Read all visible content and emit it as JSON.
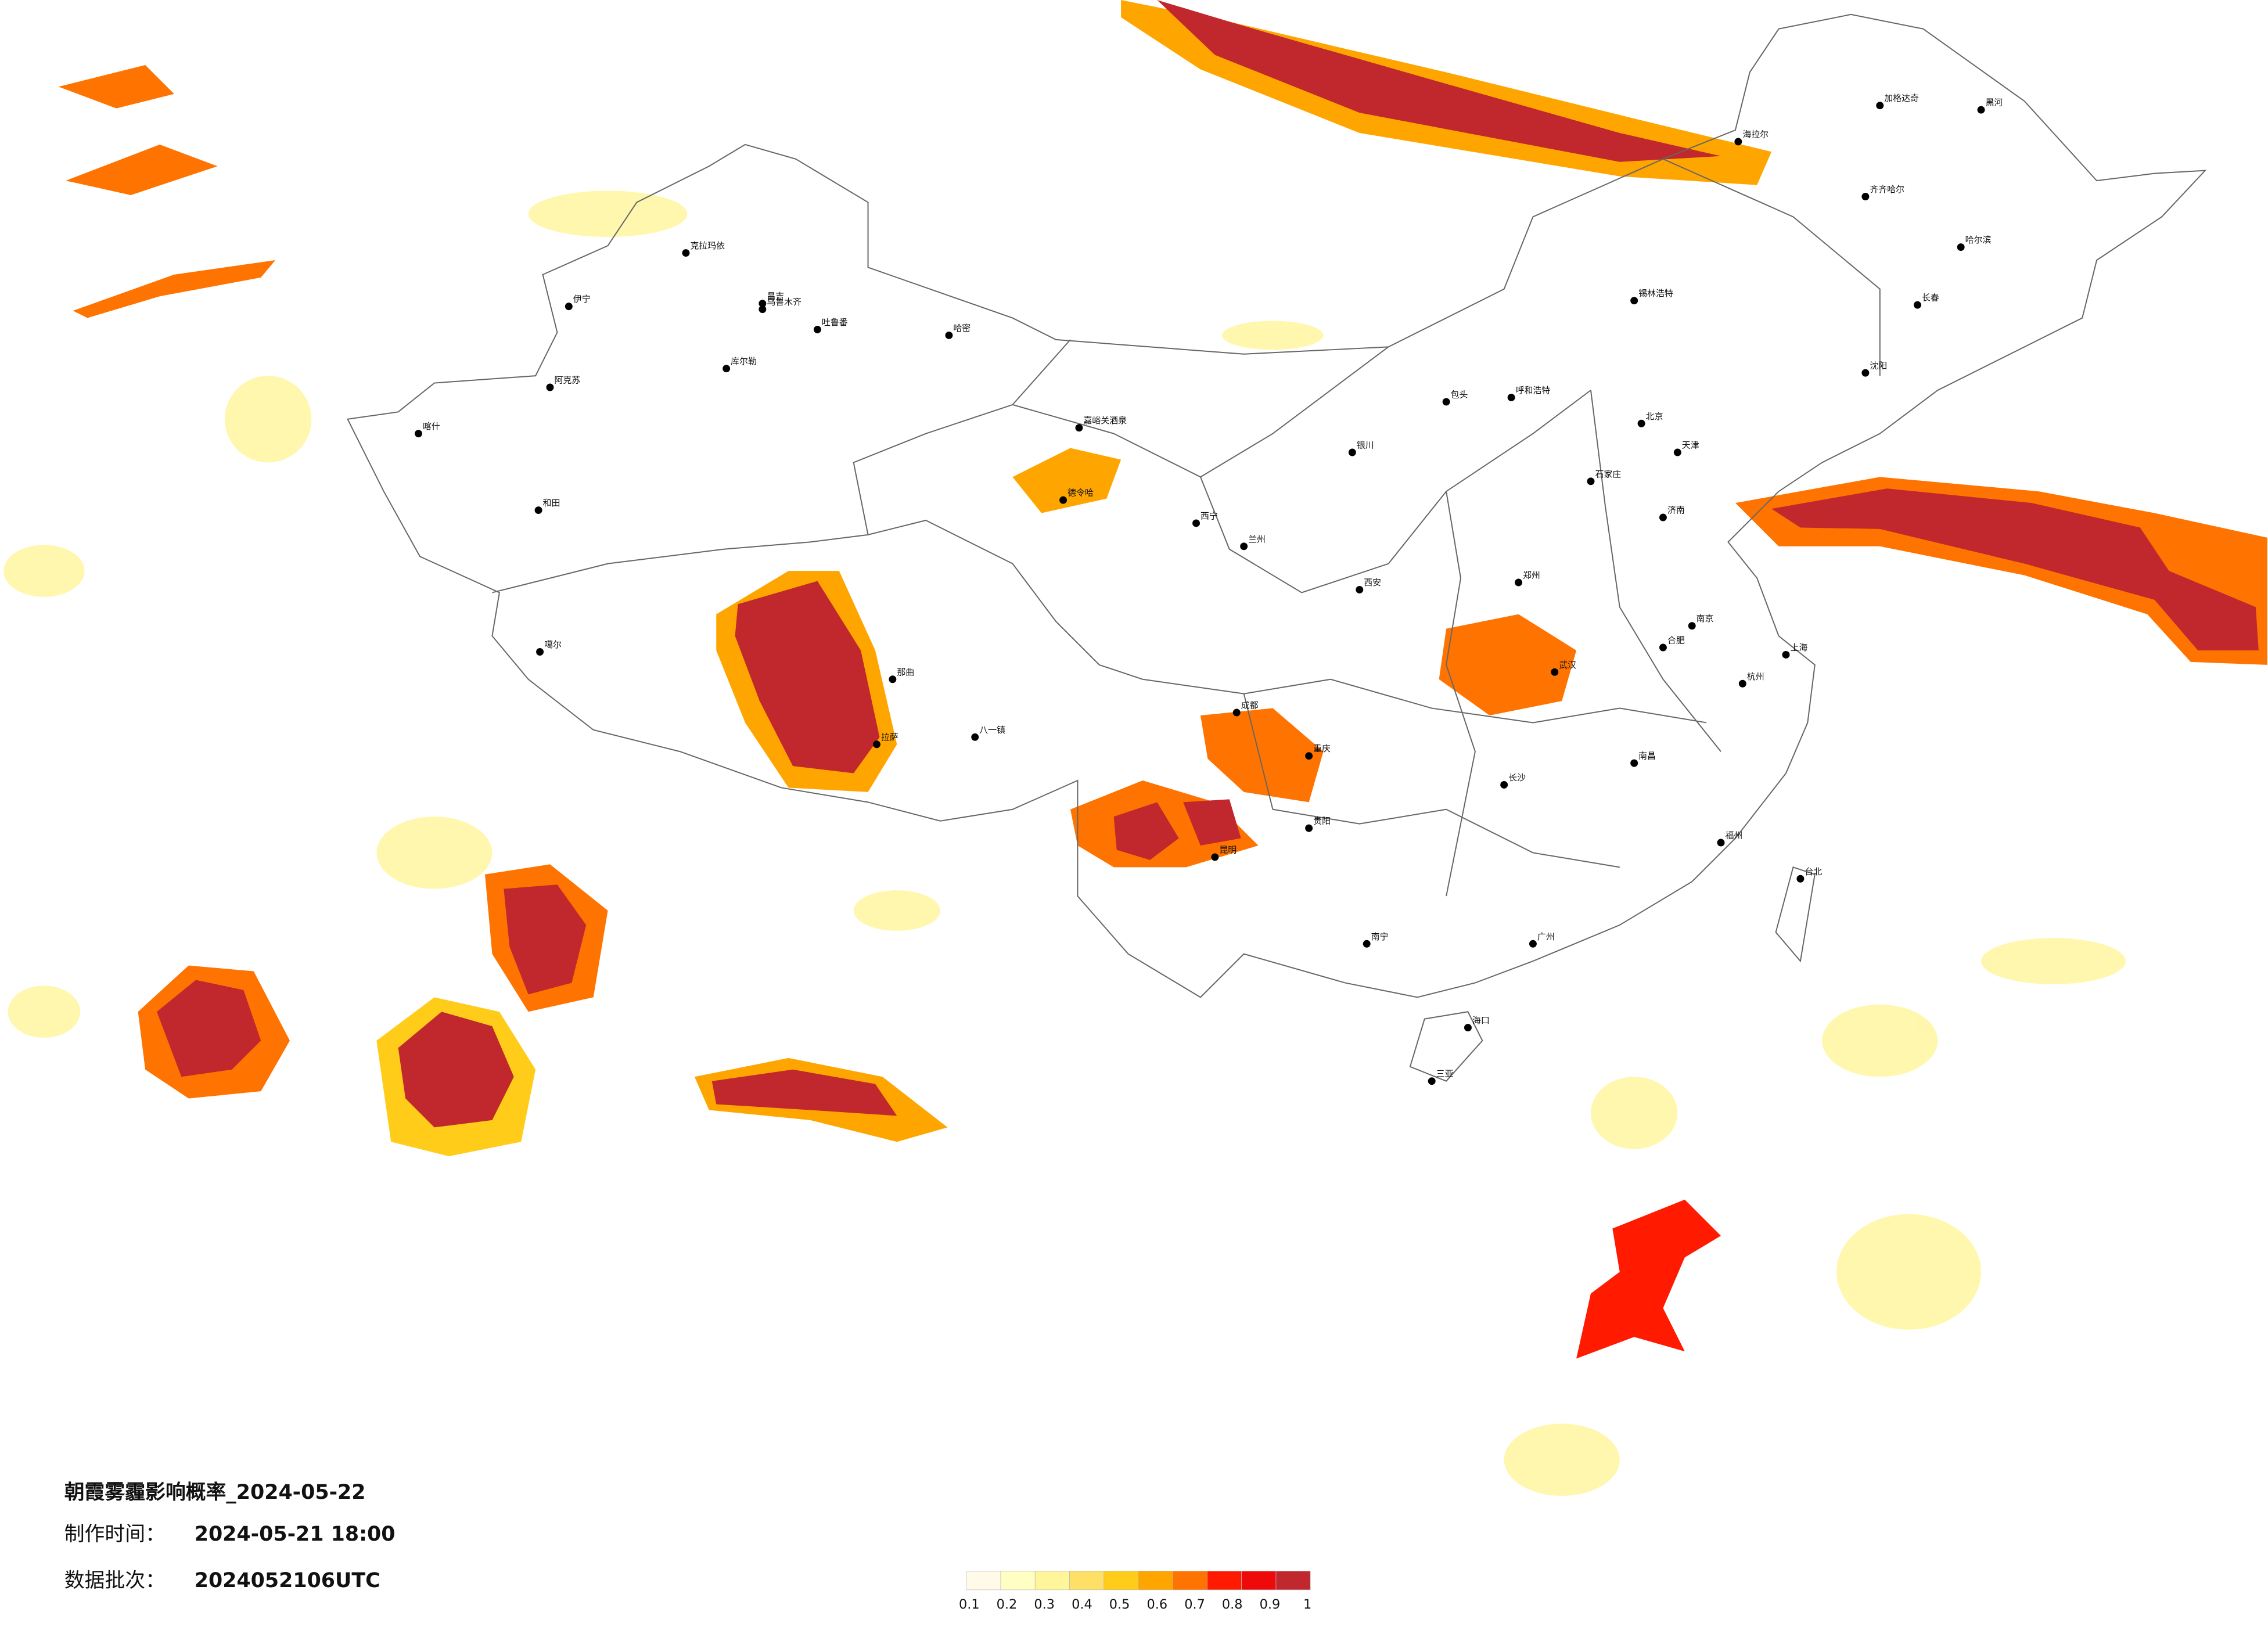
{
  "title": "朝霞雾霾影响概率_2024-05-22",
  "made_label": "制作时间：",
  "made_time": "2024-05-21 18:00",
  "batch_label": "数据批次：",
  "batch": "2024052106UTC",
  "legend": {
    "ticks": [
      0.1,
      0.2,
      0.3,
      0.4,
      0.5,
      0.6,
      0.7,
      0.8,
      0.9,
      1
    ],
    "colors": [
      "#fffbe8",
      "#ffffc4",
      "#fff59a",
      "#ffe066",
      "#ffcc1a",
      "#ffa500",
      "#ff7300",
      "#ff1a00",
      "#ee0a0a",
      "#c0282d"
    ]
  },
  "cities": [
    "伊宁",
    "克拉玛依",
    "昌吉",
    "乌鲁木齐",
    "吐鲁番",
    "哈密",
    "库尔勒",
    "阿克苏",
    "喀什",
    "和田",
    "噶尔",
    "嘉峪关酒泉",
    "德令哈",
    "那曲",
    "拉萨",
    "八一镇",
    "海拉尔",
    "加格达奇",
    "黑河",
    "齐齐哈尔",
    "哈尔滨",
    "长春",
    "沈阳",
    "锡林浩特",
    "呼和浩特",
    "包头",
    "银川",
    "兰州",
    "西宁",
    "北京",
    "天津",
    "石家庄",
    "济南",
    "郑州",
    "西安",
    "成都",
    "重庆",
    "贵阳",
    "昆明",
    "南宁",
    "广州",
    "长沙",
    "武汉",
    "南京",
    "合肥",
    "上海",
    "杭州",
    "福州",
    "南昌",
    "台北",
    "海口",
    "三亚"
  ]
}
